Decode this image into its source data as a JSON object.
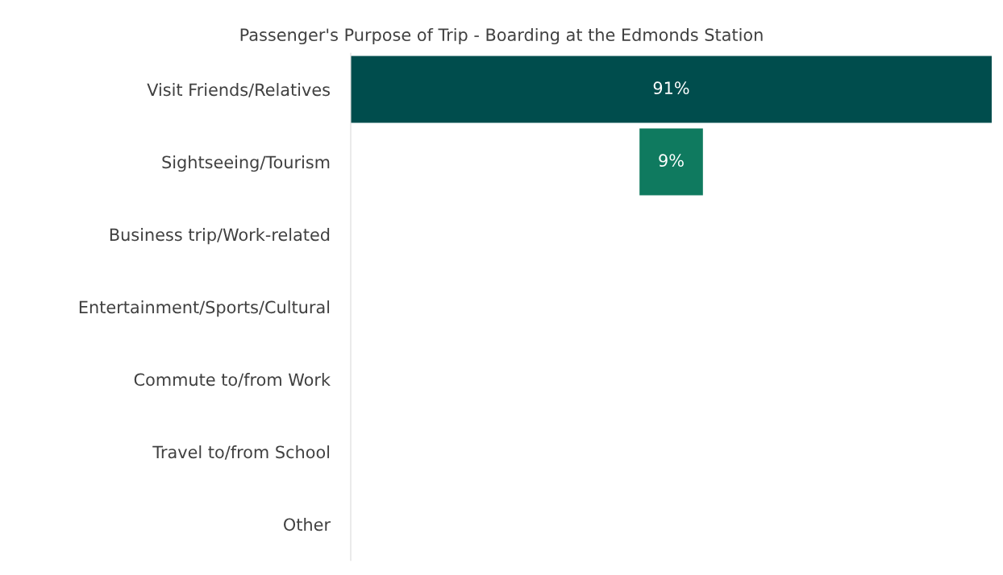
{
  "chart_data": {
    "type": "other",
    "title": "Passenger's Purpose of Trip - Boarding at the Edmonds Station",
    "categories": [
      "Visit Friends/Relatives",
      "Sightseeing/Tourism",
      "Business trip/Work-related",
      "Entertainment/Sports/Cultural",
      "Commute to/from Work",
      "Travel to/from School",
      "Other"
    ],
    "values": [
      91,
      9,
      null,
      null,
      null,
      null,
      null
    ],
    "colors": [
      "#004d4d",
      "#0f7a5f",
      "#0f7a5f",
      "#0f7a5f",
      "#0f7a5f",
      "#0f7a5f",
      "#0f7a5f"
    ],
    "value_labels": [
      "91%",
      "9%",
      null,
      null,
      null,
      null,
      null
    ]
  }
}
